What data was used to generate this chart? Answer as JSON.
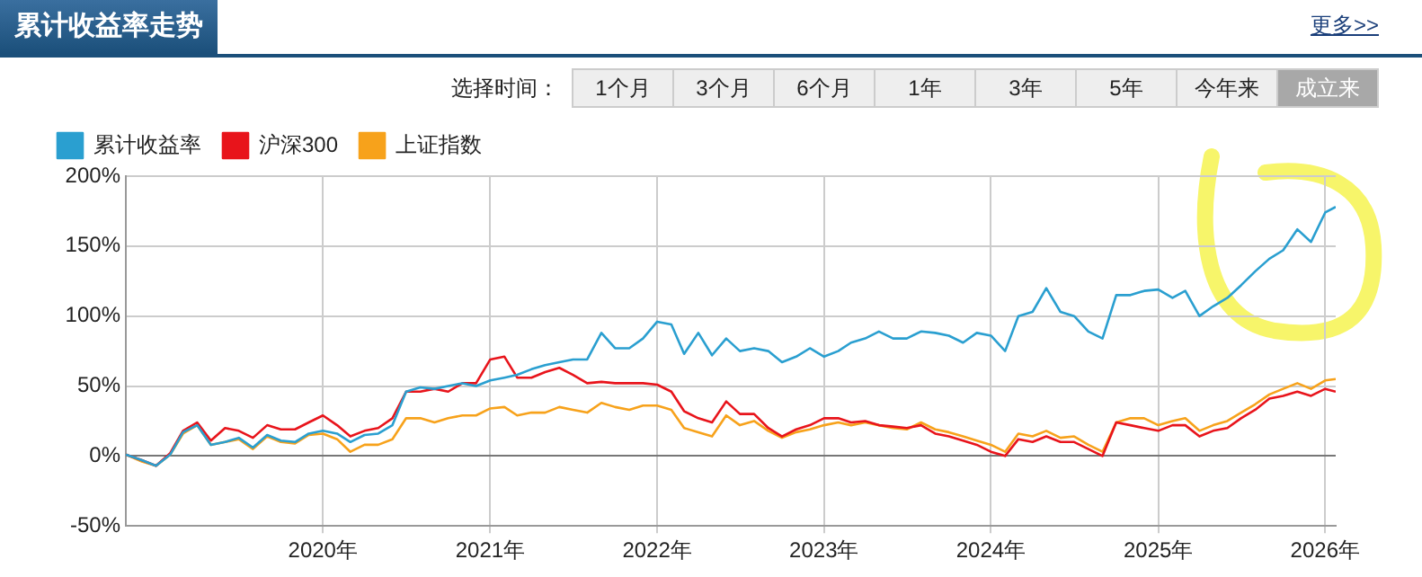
{
  "chart_data": {
    "type": "line",
    "title": "累计收益率走势",
    "annotations": [
      "更多>>",
      "选择时间：",
      "1个月",
      "3个月",
      "6个月",
      "1年",
      "3年",
      "5年",
      "今年来",
      "成立来"
    ],
    "x": [
      "2018-10-27",
      "2018-12",
      "2019-01",
      "2019-02",
      "2019-03",
      "2019-04",
      "2019-05",
      "2019-06",
      "2019-07",
      "2019-08",
      "2019-09",
      "2019-10",
      "2019-11",
      "2019-12",
      "2020-01",
      "2020-02",
      "2020-03",
      "2020-04",
      "2020-05",
      "2020-06",
      "2020-07",
      "2020-08",
      "2020-09",
      "2020-10",
      "2020-11",
      "2020-12",
      "2021-01",
      "2021-02",
      "2021-03",
      "2021-04",
      "2021-05",
      "2021-06",
      "2021-07",
      "2021-08",
      "2021-09",
      "2021-10",
      "2021-11",
      "2021-12",
      "2022-01",
      "2022-02",
      "2022-03",
      "2022-04",
      "2022-05",
      "2022-06",
      "2022-07",
      "2022-08",
      "2022-09",
      "2022-10",
      "2022-11",
      "2022-12",
      "2023-01",
      "2023-02",
      "2023-03",
      "2023-04",
      "2023-05",
      "2023-06",
      "2023-07",
      "2023-08",
      "2023-09",
      "2023-10",
      "2023-11",
      "2023-12",
      "2024-01",
      "2024-02",
      "2024-03",
      "2024-04",
      "2024-05",
      "2024-06",
      "2024-07",
      "2024-08",
      "2024-09",
      "2024-10",
      "2024-11",
      "2024-12",
      "2025-01",
      "2025-02",
      "2025-03",
      "2025-04",
      "2025-05",
      "2025-06",
      "2025-07",
      "2025-08",
      "2025-09",
      "2025-10",
      "2025-11",
      "2025-12",
      "2026-01",
      "2026-01-24"
    ],
    "series": [
      {
        "name": "累计收益率",
        "color": "#2a9fd0",
        "values": [
          1,
          -3,
          -7,
          1,
          17,
          22,
          8,
          10,
          13,
          6,
          15,
          11,
          10,
          16,
          18,
          16,
          10,
          15,
          16,
          22,
          46,
          49,
          48,
          50,
          52,
          50,
          54,
          56,
          58,
          62,
          65,
          67,
          69,
          69,
          88,
          77,
          77,
          84,
          96,
          94,
          73,
          88,
          72,
          84,
          75,
          77,
          75,
          67,
          71,
          77,
          71,
          75,
          81,
          84,
          89,
          84,
          84,
          89,
          88,
          86,
          81,
          88,
          86,
          75,
          100,
          103,
          120,
          103,
          100,
          89,
          84,
          115,
          115,
          118,
          119,
          113,
          118,
          100,
          107,
          113,
          122,
          132,
          141,
          147,
          162,
          153,
          174,
          178
        ]
      },
      {
        "name": "沪深300",
        "color": "#e8141b",
        "values": [
          1,
          -3,
          -7,
          2,
          18,
          24,
          11,
          20,
          18,
          13,
          22,
          19,
          19,
          24,
          29,
          22,
          14,
          18,
          20,
          27,
          46,
          46,
          48,
          46,
          52,
          52,
          69,
          71,
          56,
          56,
          60,
          63,
          58,
          52,
          53,
          52,
          52,
          52,
          51,
          46,
          32,
          27,
          24,
          39,
          30,
          30,
          20,
          14,
          19,
          22,
          27,
          27,
          24,
          25,
          22,
          21,
          20,
          22,
          16,
          14,
          11,
          8,
          3,
          0,
          12,
          10,
          14,
          10,
          10,
          5,
          0,
          24,
          22,
          20,
          18,
          22,
          22,
          14,
          18,
          20,
          27,
          33,
          41,
          43,
          46,
          43,
          48,
          46
        ]
      },
      {
        "name": "上证指数",
        "color": "#f7a21b",
        "values": [
          1,
          -4,
          -7,
          1,
          16,
          22,
          8,
          10,
          12,
          5,
          14,
          10,
          9,
          15,
          16,
          12,
          3,
          8,
          8,
          12,
          27,
          27,
          24,
          27,
          29,
          29,
          34,
          35,
          29,
          31,
          31,
          35,
          33,
          31,
          38,
          35,
          33,
          36,
          36,
          33,
          20,
          17,
          14,
          29,
          22,
          25,
          18,
          13,
          17,
          19,
          22,
          24,
          22,
          24,
          22,
          20,
          19,
          24,
          19,
          17,
          14,
          11,
          8,
          3,
          16,
          14,
          18,
          13,
          14,
          8,
          3,
          24,
          27,
          27,
          22,
          25,
          27,
          18,
          22,
          25,
          31,
          37,
          44,
          48,
          52,
          48,
          54,
          55
        ]
      }
    ],
    "xlim": [
      "2018-10-27",
      "2026-01-24"
    ],
    "xticks": [
      {
        "value": "2020-01-01",
        "label": "2020年"
      },
      {
        "value": "2021-01-01",
        "label": "2021年"
      },
      {
        "value": "2022-01-01",
        "label": "2022年"
      },
      {
        "value": "2023-01-01",
        "label": "2023年"
      },
      {
        "value": "2024-01-01",
        "label": "2024年"
      },
      {
        "value": "2025-01-01",
        "label": "2025年"
      },
      {
        "value": "2026-01-01",
        "label": "2026年"
      }
    ],
    "ylim": [
      -50,
      200
    ],
    "yticks": [
      {
        "value": -50,
        "label": "-50%"
      },
      {
        "value": 0,
        "label": "0%"
      },
      {
        "value": 50,
        "label": "50%"
      },
      {
        "value": 100,
        "label": "100%"
      },
      {
        "value": 150,
        "label": "150%"
      },
      {
        "value": 200,
        "label": "200%"
      }
    ],
    "grid": true,
    "legend": "top left",
    "marker": "none",
    "line_style": "solid"
  }
}
